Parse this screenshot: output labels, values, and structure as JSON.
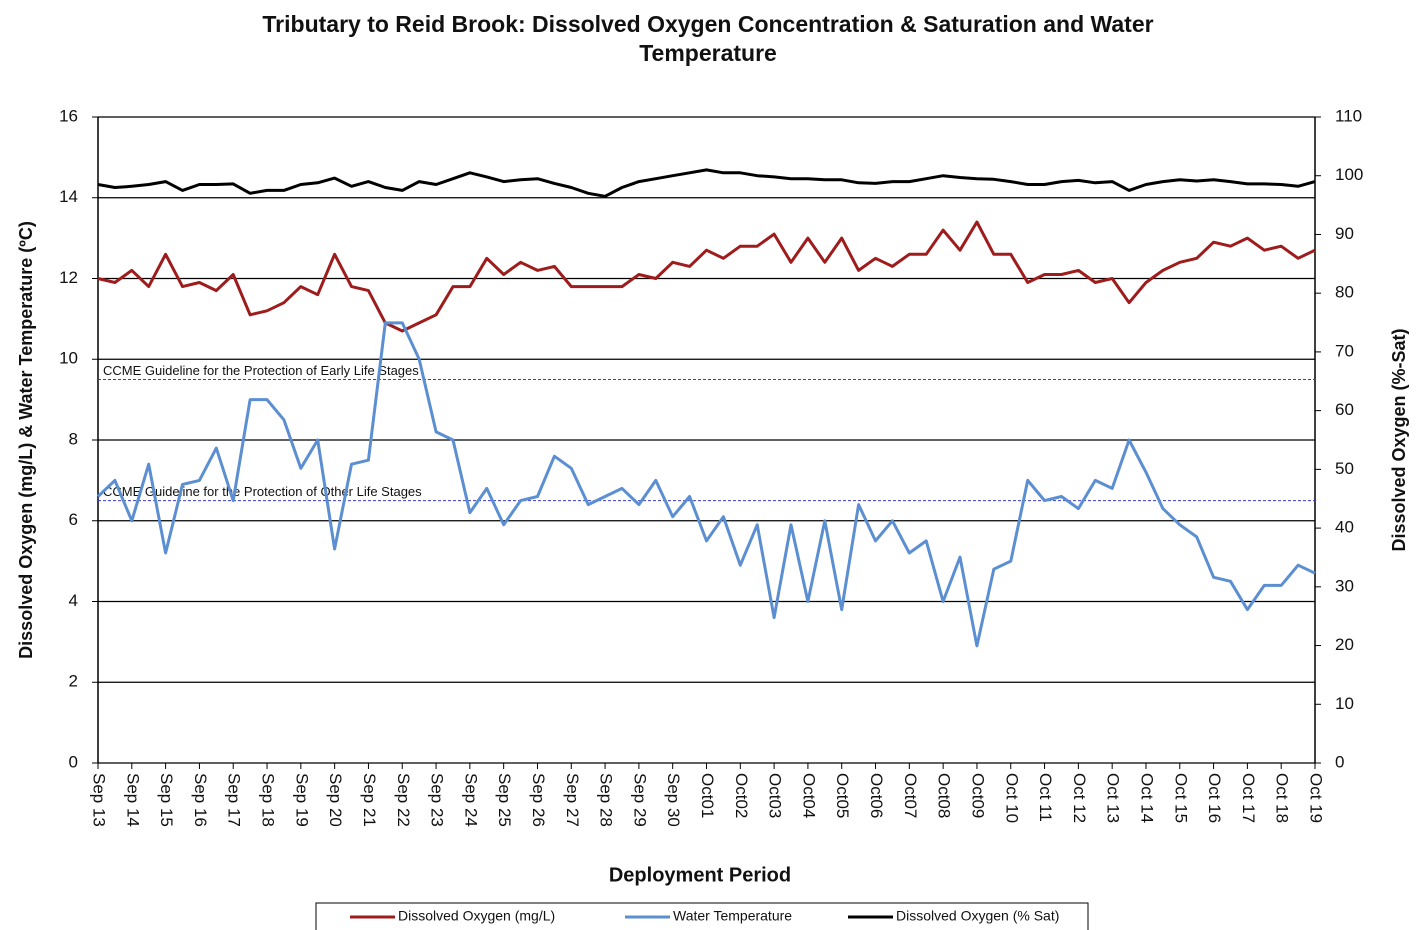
{
  "chart_data": {
    "type": "line",
    "title": "Tributary to Reid Brook: Dissolved Oxygen Concentration & Saturation and Water Temperature",
    "x_label": "Deployment Period",
    "y_label": "Dissolved  Oxygen (mg/L) & Water Temperature (ºC)",
    "y2_label": "Dissolved  Oxygen (%-Sat)",
    "xlim": [
      0,
      36
    ],
    "xticks": [
      {
        "value": 0,
        "label": "Sep 13"
      },
      {
        "value": 1,
        "label": "Sep 14"
      },
      {
        "value": 2,
        "label": "Sep 15"
      },
      {
        "value": 3,
        "label": "Sep 16"
      },
      {
        "value": 4,
        "label": "Sep 17"
      },
      {
        "value": 5,
        "label": "Sep 18"
      },
      {
        "value": 6,
        "label": "Sep 19"
      },
      {
        "value": 7,
        "label": "Sep 20"
      },
      {
        "value": 8,
        "label": "Sep 21"
      },
      {
        "value": 9,
        "label": "Sep 22"
      },
      {
        "value": 10,
        "label": "Sep 23"
      },
      {
        "value": 11,
        "label": "Sep 24"
      },
      {
        "value": 12,
        "label": "Sep 25"
      },
      {
        "value": 13,
        "label": "Sep 26"
      },
      {
        "value": 14,
        "label": "Sep 27"
      },
      {
        "value": 15,
        "label": "Sep 28"
      },
      {
        "value": 16,
        "label": "Sep 29"
      },
      {
        "value": 17,
        "label": "Sep 30"
      },
      {
        "value": 18,
        "label": "Oct01"
      },
      {
        "value": 19,
        "label": "Oct02"
      },
      {
        "value": 20,
        "label": "Oct03"
      },
      {
        "value": 21,
        "label": "Oct04"
      },
      {
        "value": 22,
        "label": "Oct05"
      },
      {
        "value": 23,
        "label": "Oct06"
      },
      {
        "value": 24,
        "label": "Oct07"
      },
      {
        "value": 25,
        "label": "Oct08"
      },
      {
        "value": 26,
        "label": "Oct09"
      },
      {
        "value": 27,
        "label": "Oct 10"
      },
      {
        "value": 28,
        "label": "Oct 11"
      },
      {
        "value": 29,
        "label": "Oct 12"
      },
      {
        "value": 30,
        "label": "Oct 13"
      },
      {
        "value": 31,
        "label": "Oct 14"
      },
      {
        "value": 32,
        "label": "Oct 15"
      },
      {
        "value": 33,
        "label": "Oct 16"
      },
      {
        "value": 34,
        "label": "Oct 17"
      },
      {
        "value": 35,
        "label": "Oct 18"
      },
      {
        "value": 36,
        "label": "Oct 19"
      }
    ],
    "ylim": [
      0,
      16
    ],
    "yticks": [
      0,
      2,
      4,
      6,
      8,
      10,
      12,
      14,
      16
    ],
    "y2lim": [
      0,
      110
    ],
    "y2ticks": [
      0,
      10,
      20,
      30,
      40,
      50,
      60,
      70,
      80,
      90,
      100,
      110
    ],
    "grid": true,
    "guidelines": [
      {
        "value": 9.5,
        "label": "CCME Guideline  for the Protection of Early Life Stages"
      },
      {
        "value": 6.5,
        "label": "CCME Guideline  for the Protection of Other Life Stages"
      }
    ],
    "x": [
      0,
      0.5,
      1,
      1.5,
      2,
      2.5,
      3,
      3.5,
      4,
      4.5,
      5,
      5.5,
      6,
      6.5,
      7,
      7.5,
      8,
      8.5,
      9,
      9.5,
      10,
      10.5,
      11,
      11.5,
      12,
      12.5,
      13,
      13.5,
      14,
      14.5,
      15,
      15.5,
      16,
      16.5,
      17,
      17.5,
      18,
      18.5,
      19,
      19.5,
      20,
      20.5,
      21,
      21.5,
      22,
      22.5,
      23,
      23.5,
      24,
      24.5,
      25,
      25.5,
      26,
      26.5,
      27,
      27.5,
      28,
      28.5,
      29,
      29.5,
      30,
      30.5,
      31,
      31.5,
      32,
      32.5,
      33,
      33.5,
      34,
      34.5,
      35,
      35.5,
      36
    ],
    "series": [
      {
        "name": "Dissolved Oxygen (mg/L)",
        "color": "#9e1c1c",
        "values": [
          12.0,
          11.9,
          12.2,
          11.8,
          12.6,
          11.8,
          11.9,
          11.7,
          12.1,
          11.1,
          11.2,
          11.4,
          11.8,
          11.6,
          12.6,
          11.8,
          11.7,
          10.9,
          10.7,
          10.9,
          11.1,
          11.8,
          11.8,
          12.5,
          12.1,
          12.4,
          12.2,
          12.3,
          11.8,
          11.8,
          11.8,
          11.8,
          12.1,
          12.0,
          12.4,
          12.3,
          12.7,
          12.5,
          12.8,
          12.8,
          13.1,
          12.4,
          13.0,
          12.4,
          13.0,
          12.2,
          12.5,
          12.3,
          12.6,
          12.6,
          13.2,
          12.7,
          13.4,
          12.6,
          12.6,
          11.9,
          12.1,
          12.1,
          12.2,
          11.9,
          12.0,
          11.4,
          11.9,
          12.2,
          12.4,
          12.5,
          12.9,
          12.8,
          13.0,
          12.7,
          12.8,
          12.5,
          12.7
        ]
      },
      {
        "name": "Water Temperature",
        "color": "#5b8fd2",
        "values": [
          6.6,
          7.0,
          6.0,
          7.4,
          5.2,
          6.9,
          7.0,
          7.8,
          6.5,
          9.0,
          9.0,
          8.5,
          7.3,
          8.0,
          5.3,
          7.4,
          7.5,
          10.9,
          10.9,
          10.0,
          8.2,
          8.0,
          6.2,
          6.8,
          5.9,
          6.5,
          6.6,
          7.6,
          7.3,
          6.4,
          6.6,
          6.8,
          6.4,
          7.0,
          6.1,
          6.6,
          5.5,
          6.1,
          4.9,
          5.9,
          3.6,
          5.9,
          4.0,
          6.0,
          3.8,
          6.4,
          5.5,
          6.0,
          5.2,
          5.5,
          4.0,
          5.1,
          2.9,
          4.8,
          5.0,
          7.0,
          6.5,
          6.6,
          6.3,
          7.0,
          6.8,
          8.0,
          7.2,
          6.3,
          5.9,
          5.6,
          4.6,
          4.5,
          3.8,
          4.4,
          4.4,
          4.9,
          4.7
        ]
      },
      {
        "name": "Dissolved Oxygen (% Sat)",
        "color": "#000000",
        "axis": "y2",
        "values": [
          98.5,
          98,
          98.2,
          98.5,
          99,
          97.5,
          98.5,
          98.5,
          98.6,
          97,
          97.5,
          97.5,
          98.5,
          98.8,
          99.6,
          98.2,
          99,
          98,
          97.5,
          99,
          98.5,
          99.5,
          100.5,
          99.8,
          99,
          99.3,
          99.5,
          98.7,
          98,
          97,
          96.5,
          98,
          99,
          99.5,
          100,
          100.5,
          101,
          100.5,
          100.5,
          100,
          99.8,
          99.5,
          99.5,
          99.3,
          99.3,
          98.8,
          98.7,
          99,
          99,
          99.5,
          100,
          99.7,
          99.5,
          99.4,
          99,
          98.5,
          98.5,
          99,
          99.2,
          98.8,
          99,
          97.5,
          98.5,
          99,
          99.3,
          99.1,
          99.3,
          99,
          98.6,
          98.6,
          98.5,
          98.2,
          99
        ]
      }
    ]
  }
}
